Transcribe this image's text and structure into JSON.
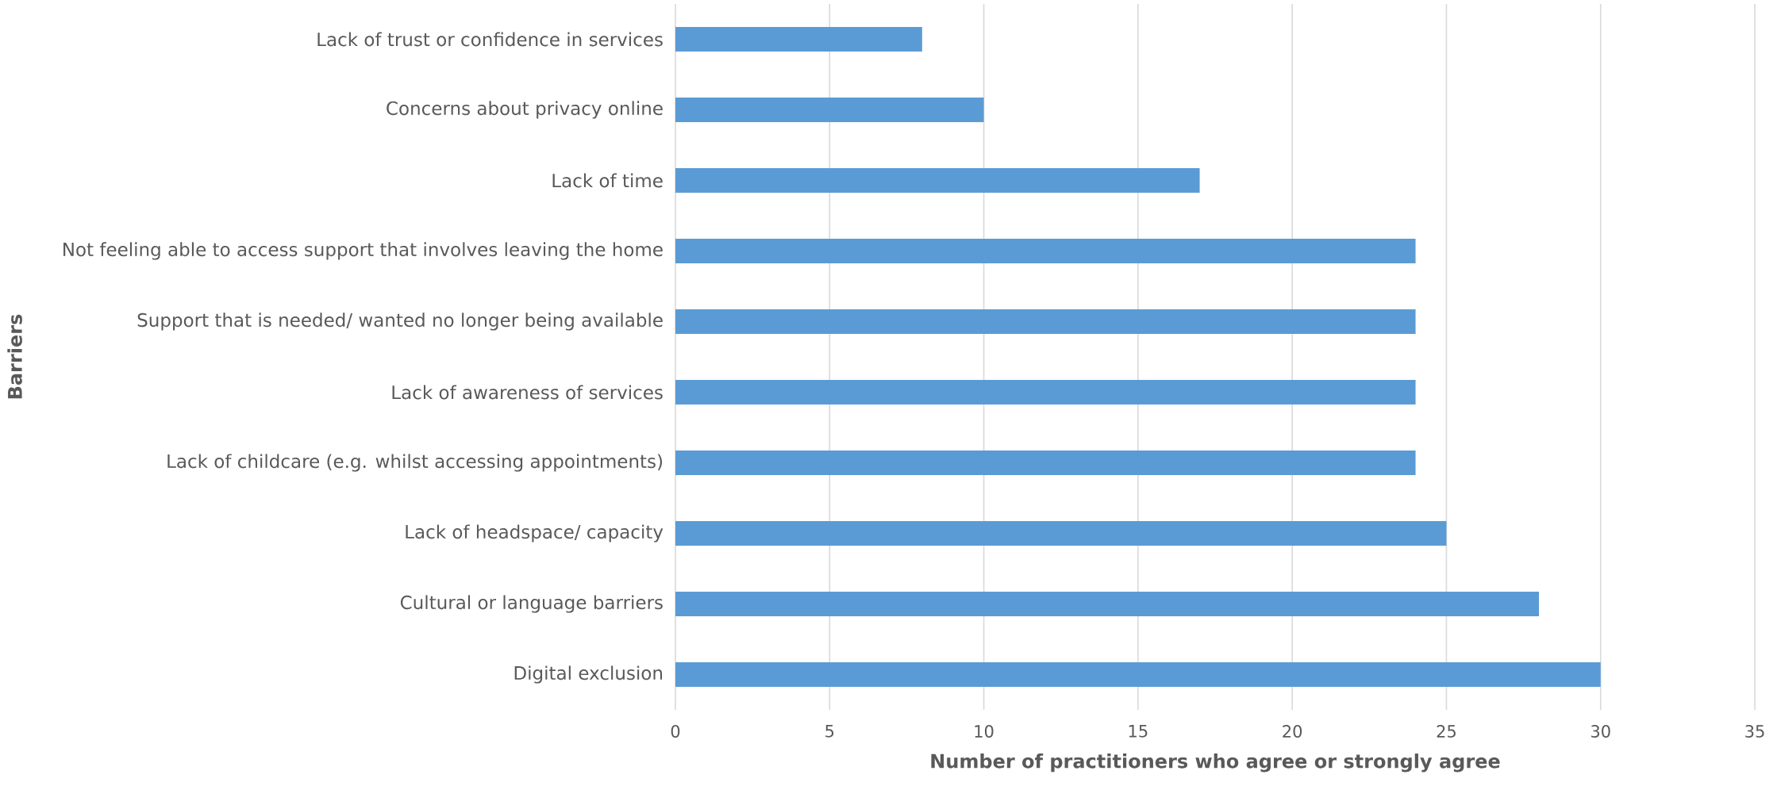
{
  "chart_data": {
    "type": "bar",
    "orientation": "horizontal",
    "xlabel": "Number of practitioners who agree or strongly agree",
    "ylabel": "Barriers",
    "categories": [
      "Lack of trust or confidence in services",
      "Concerns about privacy online",
      "Lack of time",
      "Not feeling able to access support that involves leaving the home",
      "Support that is needed/ wanted no longer being available",
      "Lack of awareness of services",
      "Lack of childcare (e.g. whilst accessing appointments)",
      "Lack of headspace/ capacity",
      "Cultural or language barriers",
      "Digital exclusion"
    ],
    "values": [
      8,
      10,
      17,
      24,
      24,
      24,
      24,
      25,
      28,
      30
    ],
    "color": "#5b9bd5",
    "xlim": [
      0,
      35
    ],
    "xticks": [
      0,
      5,
      10,
      15,
      20,
      25,
      30,
      35
    ],
    "grid": "x"
  }
}
